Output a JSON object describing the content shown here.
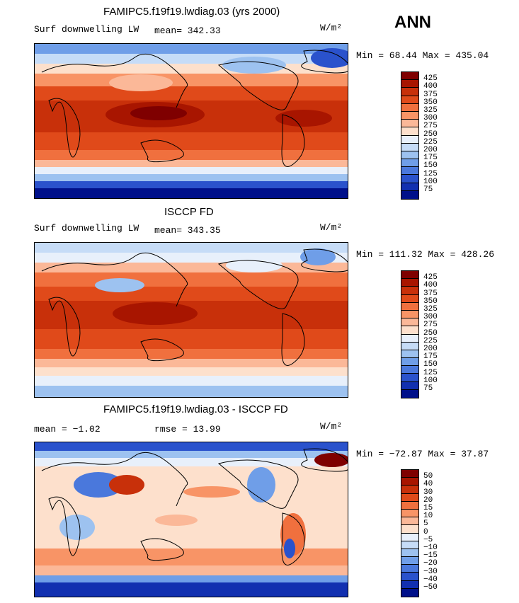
{
  "season": "ANN",
  "panels": [
    {
      "title": "FAMIPC5.f19f19.lwdiag.03 (yrs 2000)",
      "left_label": "Surf downwelling LW",
      "stat_text": "mean= 342.33",
      "units": "W/m²",
      "minmax": "Min =  68.44 Max = 435.04"
    },
    {
      "title": "ISCCP FD",
      "left_label": "Surf downwelling LW",
      "stat_text": "mean= 343.35",
      "units": "W/m²",
      "minmax": "Min = 111.32 Max = 428.26"
    },
    {
      "title": "FAMIPC5.f19f19.lwdiag.03 - ISCCP FD",
      "left_label": "mean =  −1.02",
      "stat_text": "rmse =  13.99",
      "units": "W/m²",
      "minmax": "Min = −72.87 Max =  37.87"
    }
  ],
  "colorbar_abs": {
    "labels": [
      "425",
      "400",
      "375",
      "350",
      "325",
      "300",
      "275",
      "250",
      "225",
      "200",
      "175",
      "150",
      "125",
      "100",
      "75"
    ],
    "colors": [
      "#7f0000",
      "#a81500",
      "#c8300a",
      "#e04a1a",
      "#f0703e",
      "#f89466",
      "#fbb898",
      "#fde0cc",
      "#e8f0fb",
      "#c6dcf7",
      "#9dc2f0",
      "#6f9ee8",
      "#4a78dc",
      "#2a52cc",
      "#1230b0",
      "#00108a"
    ]
  },
  "colorbar_diff": {
    "labels": [
      "50",
      "40",
      "30",
      "20",
      "15",
      "10",
      "5",
      "0",
      "−5",
      "−10",
      "−15",
      "−20",
      "−30",
      "−40",
      "−50"
    ],
    "colors": [
      "#7f0000",
      "#a81500",
      "#c8300a",
      "#e04a1a",
      "#f0703e",
      "#f89466",
      "#fbb898",
      "#fde0cc",
      "#e8f0fb",
      "#c6dcf7",
      "#9dc2f0",
      "#6f9ee8",
      "#4a78dc",
      "#2a52cc",
      "#1230b0",
      "#00108a"
    ]
  }
}
